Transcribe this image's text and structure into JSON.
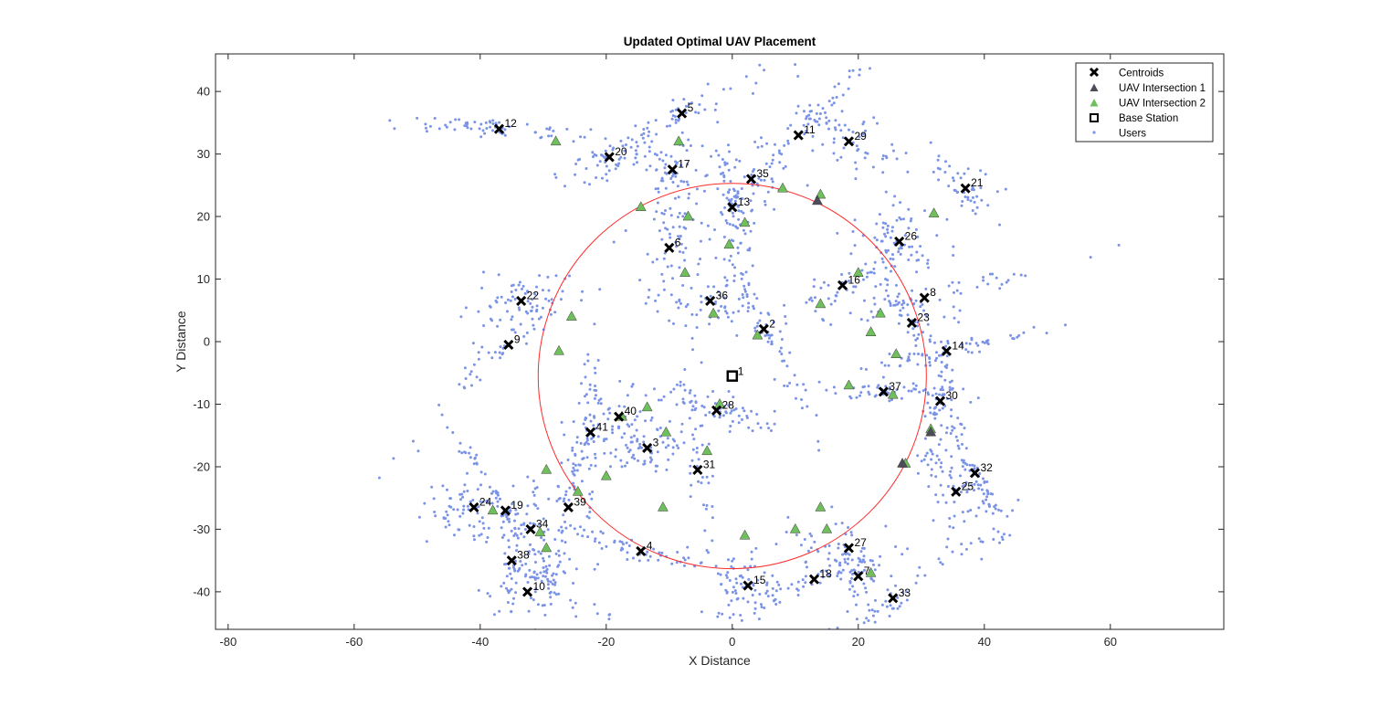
{
  "chart_data": {
    "type": "scatter",
    "title": "Updated Optimal UAV Placement",
    "xlabel": "X Distance",
    "ylabel": "Y Distance",
    "xlim": [
      -82,
      78
    ],
    "ylim": [
      -46,
      46
    ],
    "xticks": [
      -80,
      -60,
      -40,
      -20,
      0,
      20,
      40,
      60
    ],
    "yticks": [
      -40,
      -30,
      -20,
      -10,
      0,
      10,
      20,
      30,
      40
    ],
    "grid": false,
    "legend_position": "top-right",
    "colors": {
      "users": "#7b93e6",
      "intersection1": "#4d4d59",
      "intersection2": "#6fbf5c",
      "circle": "#ff2a2a",
      "centroid": "#000000"
    },
    "legend": [
      "Centroids",
      "UAV Intersection 1",
      "UAV Intersection 2",
      "Base Station",
      "Users"
    ],
    "base_station": {
      "label": "1",
      "x": 0,
      "y": -5.5
    },
    "coverage_circle": {
      "cx": 0,
      "cy": -5.5,
      "r": 30.8
    },
    "centroids": [
      {
        "label": "2",
        "x": 5,
        "y": 2
      },
      {
        "label": "3",
        "x": -13.5,
        "y": -17
      },
      {
        "label": "4",
        "x": -14.5,
        "y": -33.5
      },
      {
        "label": "5",
        "x": -8,
        "y": 36.5
      },
      {
        "label": "6",
        "x": -10,
        "y": 15
      },
      {
        "label": "7",
        "x": 20,
        "y": -37.5
      },
      {
        "label": "8",
        "x": 30.5,
        "y": 7
      },
      {
        "label": "9",
        "x": -35.5,
        "y": -0.5
      },
      {
        "label": "10",
        "x": -32.5,
        "y": -40
      },
      {
        "label": "11",
        "x": 10.5,
        "y": 33
      },
      {
        "label": "12",
        "x": -37,
        "y": 34
      },
      {
        "label": "13",
        "x": 0,
        "y": 21.5
      },
      {
        "label": "14",
        "x": 34,
        "y": -1.5
      },
      {
        "label": "15",
        "x": 2.5,
        "y": -39
      },
      {
        "label": "16",
        "x": 17.5,
        "y": 9
      },
      {
        "label": "17",
        "x": -9.5,
        "y": 27.5
      },
      {
        "label": "18",
        "x": 13,
        "y": -38
      },
      {
        "label": "19",
        "x": -36,
        "y": -27
      },
      {
        "label": "20",
        "x": -19.5,
        "y": 29.5
      },
      {
        "label": "21",
        "x": 37,
        "y": 24.5
      },
      {
        "label": "22",
        "x": -33.5,
        "y": 6.5
      },
      {
        "label": "23",
        "x": 28.5,
        "y": 3
      },
      {
        "label": "24",
        "x": -41,
        "y": -26.5
      },
      {
        "label": "25",
        "x": 35.5,
        "y": -24
      },
      {
        "label": "26",
        "x": 26.5,
        "y": 16
      },
      {
        "label": "27",
        "x": 18.5,
        "y": -33
      },
      {
        "label": "28",
        "x": -2.5,
        "y": -11
      },
      {
        "label": "29",
        "x": 18.5,
        "y": 32
      },
      {
        "label": "30",
        "x": 33,
        "y": -9.5
      },
      {
        "label": "31",
        "x": -5.5,
        "y": -20.5
      },
      {
        "label": "32",
        "x": 38.5,
        "y": -21
      },
      {
        "label": "33",
        "x": 25.5,
        "y": -41
      },
      {
        "label": "34",
        "x": -32,
        "y": -30
      },
      {
        "label": "35",
        "x": 3,
        "y": 26
      },
      {
        "label": "36",
        "x": -3.5,
        "y": 6.5
      },
      {
        "label": "37",
        "x": 24,
        "y": -8
      },
      {
        "label": "38",
        "x": -35,
        "y": -35
      },
      {
        "label": "39",
        "x": -26,
        "y": -26.5
      },
      {
        "label": "40",
        "x": -18,
        "y": -12
      },
      {
        "label": "41",
        "x": -22.5,
        "y": -14.5
      }
    ],
    "uav_intersection_1": [
      {
        "x": 13.5,
        "y": 22.5
      },
      {
        "x": 27,
        "y": -19.5
      },
      {
        "x": 31.5,
        "y": -14.5
      }
    ],
    "uav_intersection_2": [
      {
        "x": -28,
        "y": 32
      },
      {
        "x": -8.5,
        "y": 32
      },
      {
        "x": 8,
        "y": 24.5
      },
      {
        "x": 14,
        "y": 23.5
      },
      {
        "x": -14.5,
        "y": 21.5
      },
      {
        "x": -7,
        "y": 20
      },
      {
        "x": 2,
        "y": 19
      },
      {
        "x": 32,
        "y": 20.5
      },
      {
        "x": -0.5,
        "y": 15.5
      },
      {
        "x": -7.5,
        "y": 11
      },
      {
        "x": 20,
        "y": 11
      },
      {
        "x": 14,
        "y": 6
      },
      {
        "x": -3,
        "y": 4.5
      },
      {
        "x": -25.5,
        "y": 4
      },
      {
        "x": 23.5,
        "y": 4.5
      },
      {
        "x": 22,
        "y": 1.5
      },
      {
        "x": 4,
        "y": 1
      },
      {
        "x": -27.5,
        "y": -1.5
      },
      {
        "x": 26,
        "y": -2
      },
      {
        "x": 18.5,
        "y": -7
      },
      {
        "x": 25.5,
        "y": -8.5
      },
      {
        "x": -2,
        "y": -10
      },
      {
        "x": -13.5,
        "y": -10.5
      },
      {
        "x": -17.5,
        "y": -12
      },
      {
        "x": -10.5,
        "y": -14.5
      },
      {
        "x": 31.5,
        "y": -14
      },
      {
        "x": -4,
        "y": -17.5
      },
      {
        "x": 27.5,
        "y": -19.5
      },
      {
        "x": -29.5,
        "y": -20.5
      },
      {
        "x": -20,
        "y": -21.5
      },
      {
        "x": -24.5,
        "y": -24
      },
      {
        "x": -11,
        "y": -26.5
      },
      {
        "x": 14,
        "y": -26.5
      },
      {
        "x": -38,
        "y": -27
      },
      {
        "x": -30.5,
        "y": -30.5
      },
      {
        "x": 10,
        "y": -30
      },
      {
        "x": 15,
        "y": -30
      },
      {
        "x": 2,
        "y": -31
      },
      {
        "x": -29.5,
        "y": -33
      },
      {
        "x": 22,
        "y": -37
      }
    ]
  }
}
